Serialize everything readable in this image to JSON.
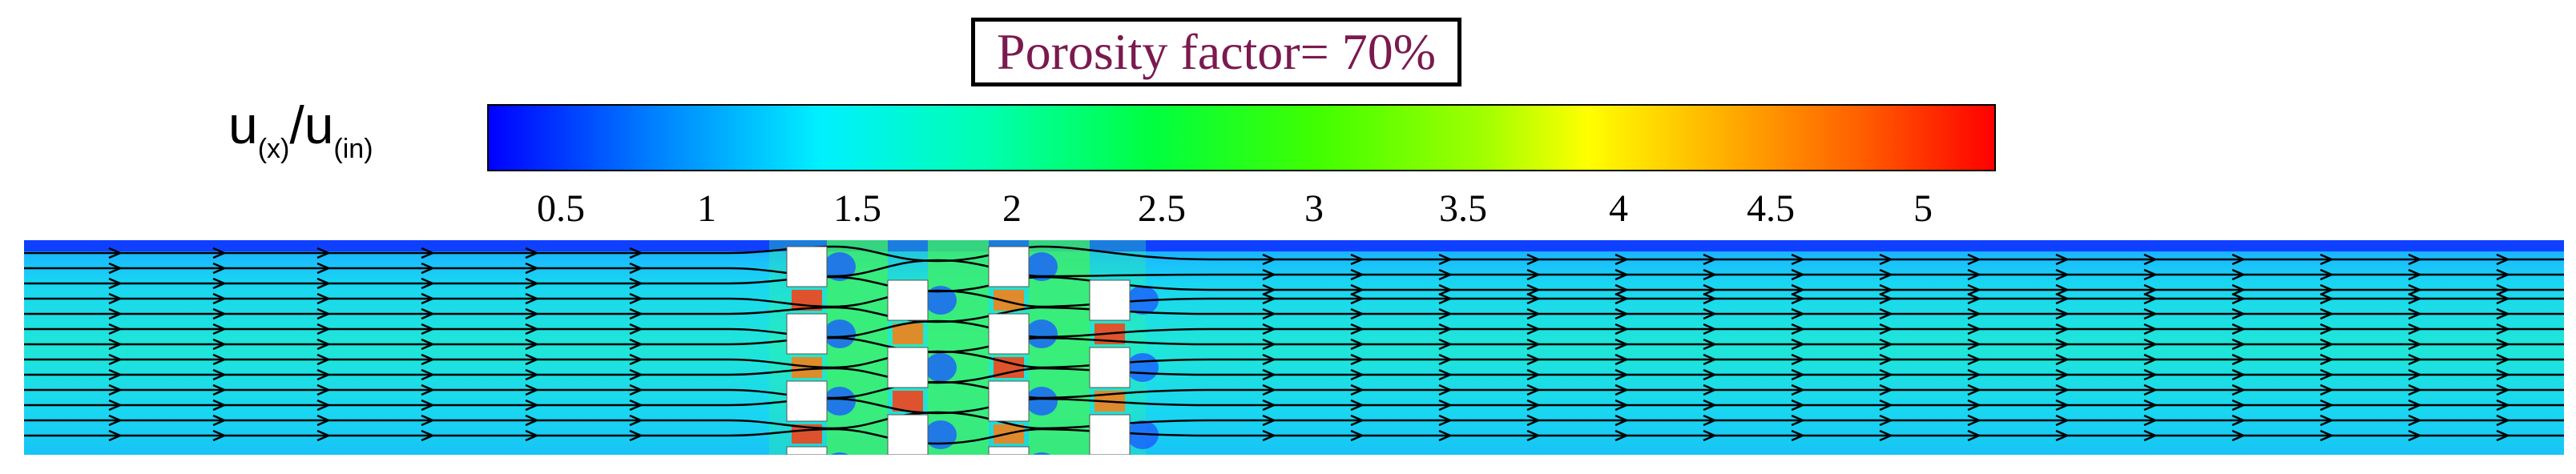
{
  "title": "Porosity factor= 70%",
  "colorbar": {
    "label_main": "u",
    "label_sub1": "(x)",
    "label_slash": "/u",
    "label_sub2": "(in)",
    "ticks": [
      "0.5",
      "1",
      "1.5",
      "2",
      "2.5",
      "3",
      "3.5",
      "4",
      "4.5",
      "5"
    ],
    "colors": [
      "#0000ff",
      "#00f0ff",
      "#00ff40",
      "#ffff00",
      "#ff0000"
    ]
  }
}
